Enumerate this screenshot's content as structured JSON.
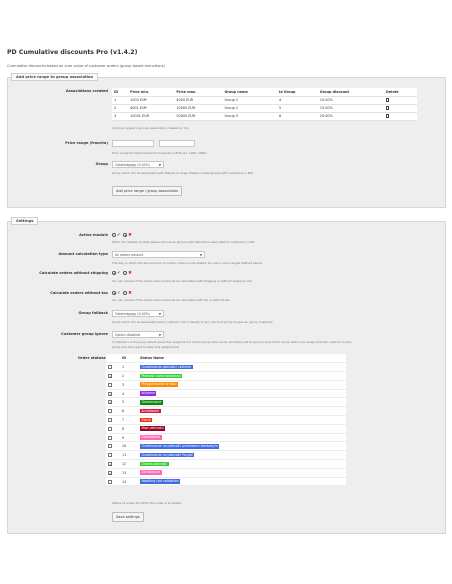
{
  "header": {
    "title": "PD Cumulative discounts Pro (v1.4.2)",
    "subtitle": "Cumulative discounts based on sum value of customer orders (group based reductions)"
  },
  "add_panel": {
    "legend": "Add price range to group association",
    "associations_label": "Associations created",
    "columns": [
      "ID",
      "Price min.",
      "Price max.",
      "Group name",
      "Id Group",
      "Group discount",
      "Delete"
    ],
    "rows": [
      {
        "id": "1",
        "min": "1000 EUR",
        "max": "4000 EUR",
        "group": "Group 1",
        "id_group": "4",
        "discount": "10.00%"
      },
      {
        "id": "2",
        "min": "4001 EUR",
        "max": "10000 EUR",
        "group": "Group 2",
        "id_group": "5",
        "discount": "15.00%"
      },
      {
        "id": "3",
        "min": "10001 EUR",
        "max": "50000 EUR",
        "group": "Group 3",
        "id_group": "6",
        "discount": "20.00%"
      }
    ],
    "associations_help": "All price ranges to groups association created by You",
    "price_range_label": "Price range (from/to)",
    "price_range_help": "Price range from/to(minimal to maximal) in EUR (ex. 1000, 2000)",
    "group_label": "Group",
    "group_value": "Ostatelagagy (0.00%)",
    "group_help": "Group which will be associated with that price range (Please create groups with reductions in BO)",
    "add_button": "Add price range / group association"
  },
  "settings_panel": {
    "legend": "Settings",
    "active_label": "Active module",
    "active_help": "When You disable module please remove all groups with reductions associated to customers in BO",
    "amount_label": "Amount calculation type",
    "amount_value": "All orders amount",
    "amount_help": "The way in which the amount sum of orders, orders is calculated, for use in price ranges defined above.",
    "shipping_label": "Calculate orders without shipping",
    "shipping_help": "You can choose if the orders amount should be calculated with shipping or without shipping cost.",
    "tax_label": "Calculate orders without tax",
    "tax_help": "You can choose if the orders amount should be calculated with tax or without tax.",
    "fallback_label": "Group fallback",
    "fallback_value": "Ostatelagagy (0.00%)",
    "fallback_help": "Group which will be associated when customer don't classify to any discount group ranges ex. group Customer",
    "ignore_label": "Customer group ignore",
    "ignore_value": "Option disabled",
    "ignore_help_1": "If customer is in the group (default group) then assignment to discount group when we do calculations will be ignored (some time's can be useful if you assign particular customer to some",
    "ignore_help_2": "group and dont want to keep this assignment)",
    "statuses_label": "Order statuses",
    "status_columns": [
      "",
      "ID",
      "Status Name"
    ],
    "statuses": [
      {
        "id": "1",
        "name": "Oczekiwanie płatności czekiem",
        "checked": false,
        "color": "#4169E1"
      },
      {
        "id": "2",
        "name": "Płatność zaakceptowana",
        "checked": true,
        "color": "#32CD32"
      },
      {
        "id": "3",
        "name": "Przygotowanie w toku",
        "checked": false,
        "color": "#FF8C00"
      },
      {
        "id": "4",
        "name": "Wysłane",
        "checked": true,
        "color": "#8A2BE2"
      },
      {
        "id": "5",
        "name": "Dostarczone",
        "checked": true,
        "color": "#108510"
      },
      {
        "id": "6",
        "name": "Anulowane",
        "checked": false,
        "color": "#DC143C"
      },
      {
        "id": "7",
        "name": "Zwrot",
        "checked": false,
        "color": "#ec2e15"
      },
      {
        "id": "8",
        "name": "Błąd płatności",
        "checked": false,
        "color": "#8f0621"
      },
      {
        "id": "9",
        "name": "Zamówione",
        "checked": false,
        "color": "#FF69B4"
      },
      {
        "id": "10",
        "name": "Oczekiwanie na płatność przelewem bankowym",
        "checked": false,
        "color": "#4169E1"
      },
      {
        "id": "11",
        "name": "Oczekiwanie na płatność Paypal",
        "checked": false,
        "color": "#4169E1"
      },
      {
        "id": "12",
        "name": "Zdalna płatność",
        "checked": true,
        "color": "#32CD32"
      },
      {
        "id": "13",
        "name": "Zamówione",
        "checked": true,
        "color": "#FF69B4"
      },
      {
        "id": "14",
        "name": "Awaiting cod validation",
        "checked": false,
        "color": "#4169E1"
      }
    ],
    "statuses_help": "Status of orders for which the order is accepted.",
    "save_button": "Save settings"
  },
  "colors": {
    "panel_bg": "#eeeeee",
    "yes": "#3a9a3a",
    "no": "#cc2b2b"
  }
}
